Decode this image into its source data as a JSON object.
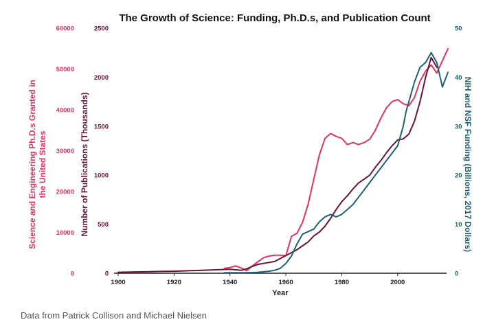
{
  "caption": "Data from Patrick Collison and Michael Nielsen",
  "chart_data": {
    "type": "line",
    "title": "The Growth of Science: Funding, Ph.D.s, and Publication Count",
    "xlabel": "Year",
    "xlim": [
      1900,
      2018
    ],
    "x_ticks": [
      "1900",
      "1920",
      "1940",
      "1960",
      "1980",
      "2000"
    ],
    "axes": [
      {
        "id": "phd",
        "label": "Science and Engineering Ph.D.s Granted in the United States",
        "color": "#e8305f",
        "ylim": [
          0,
          60000
        ],
        "ticks": [
          "0",
          "10000",
          "20000",
          "30000",
          "40000",
          "50000",
          "60000"
        ]
      },
      {
        "id": "pubs",
        "label": "Number of Publications (Thousands)",
        "color": "#6b1238",
        "ylim": [
          0,
          2500
        ],
        "ticks": [
          "0",
          "500",
          "1000",
          "1500",
          "2000",
          "2500"
        ]
      },
      {
        "id": "fund",
        "label": "NIH and NSF Funding (Billions, 2017 Dollars)",
        "color": "#1c6170",
        "ylim": [
          0,
          50
        ],
        "ticks": [
          "0",
          "10",
          "20",
          "30",
          "40",
          "50"
        ]
      }
    ],
    "series": [
      {
        "name": "Science and Engineering Ph.D.s",
        "axis": "phd",
        "color": "#e8305f",
        "x": [
          1938,
          1940,
          1942,
          1944,
          1946,
          1948,
          1950,
          1952,
          1954,
          1956,
          1958,
          1960,
          1962,
          1964,
          1966,
          1968,
          1970,
          1972,
          1974,
          1976,
          1978,
          1980,
          1982,
          1984,
          1986,
          1988,
          1990,
          1992,
          1994,
          1996,
          1998,
          2000,
          2002,
          2004,
          2006,
          2008,
          2010,
          2012,
          2014,
          2016,
          2018
        ],
        "y": [
          1200,
          1400,
          1800,
          1300,
          600,
          1800,
          2800,
          3800,
          4200,
          4400,
          4400,
          4300,
          9000,
          9800,
          12500,
          17000,
          23000,
          29000,
          33000,
          34200,
          33500,
          33000,
          31500,
          32000,
          31500,
          32000,
          32800,
          35000,
          38000,
          40500,
          42000,
          42500,
          41500,
          41000,
          43000,
          47000,
          49500,
          51000,
          49000,
          52000,
          55000
        ]
      },
      {
        "name": "Number of Publications",
        "axis": "pubs",
        "color": "#6b1238",
        "x": [
          1900,
          1905,
          1910,
          1915,
          1920,
          1925,
          1930,
          1935,
          1940,
          1942,
          1944,
          1946,
          1948,
          1950,
          1952,
          1954,
          1956,
          1958,
          1960,
          1962,
          1964,
          1966,
          1968,
          1970,
          1972,
          1974,
          1976,
          1978,
          1980,
          1982,
          1984,
          1986,
          1988,
          1990,
          1992,
          1994,
          1996,
          1998,
          2000,
          2002,
          2004,
          2006,
          2008,
          2010,
          2012,
          2014
        ],
        "y": [
          10,
          12,
          15,
          18,
          20,
          25,
          30,
          35,
          40,
          35,
          30,
          45,
          70,
          90,
          100,
          110,
          120,
          150,
          180,
          210,
          240,
          280,
          320,
          380,
          420,
          480,
          560,
          650,
          730,
          790,
          860,
          920,
          960,
          1000,
          1080,
          1150,
          1230,
          1300,
          1360,
          1370,
          1420,
          1550,
          1750,
          2000,
          2200,
          2100
        ]
      },
      {
        "name": "NIH and NSF Funding",
        "axis": "fund",
        "color": "#1c6170",
        "x": [
          1938,
          1942,
          1946,
          1950,
          1952,
          1954,
          1956,
          1958,
          1960,
          1962,
          1964,
          1966,
          1968,
          1970,
          1972,
          1974,
          1976,
          1978,
          1980,
          1982,
          1984,
          1986,
          1988,
          1990,
          1992,
          1994,
          1996,
          1998,
          2000,
          2002,
          2003,
          2004,
          2006,
          2008,
          2010,
          2012,
          2014,
          2016,
          2018
        ],
        "y": [
          0.1,
          0.1,
          0.1,
          0.2,
          0.3,
          0.4,
          0.6,
          1.0,
          2.0,
          3.5,
          6.0,
          8.0,
          8.5,
          9.0,
          10.5,
          11.5,
          12.0,
          11.5,
          12.0,
          13.0,
          14.0,
          15.5,
          17.0,
          18.5,
          20.0,
          21.5,
          23.0,
          24.5,
          26.0,
          30.0,
          33.0,
          35.0,
          39.0,
          42.0,
          43.0,
          45.0,
          43.0,
          38.0,
          41.0
        ]
      }
    ]
  }
}
